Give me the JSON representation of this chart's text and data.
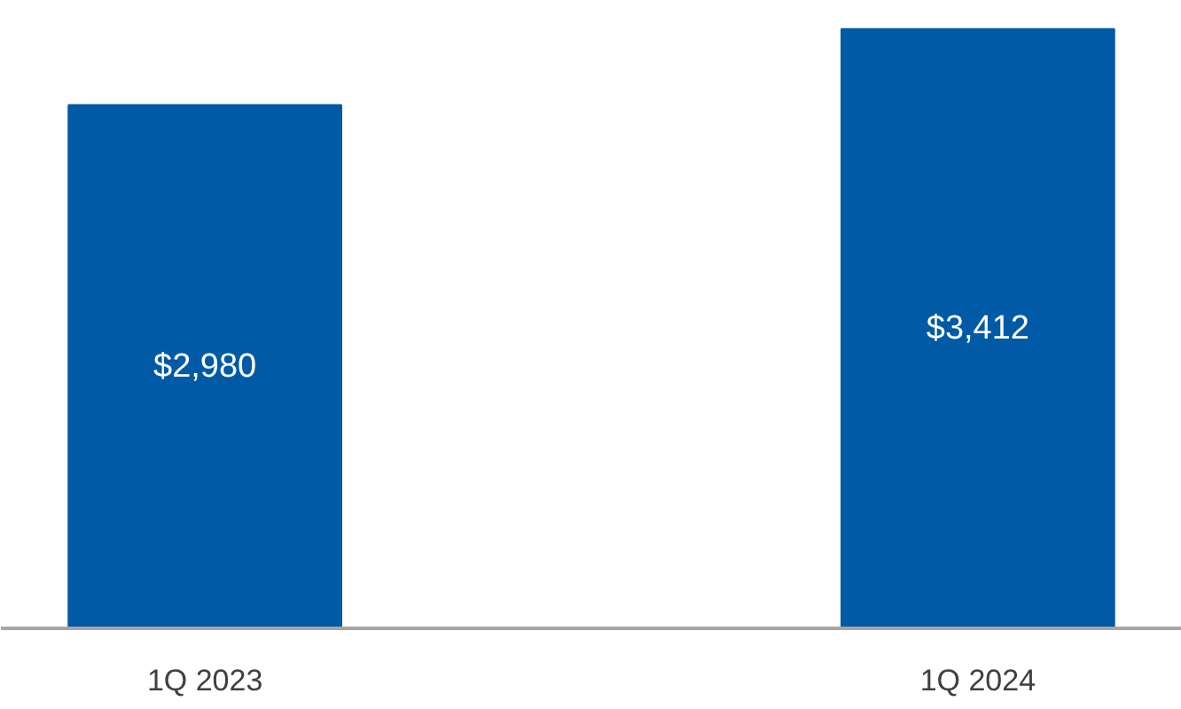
{
  "chart_data": {
    "type": "bar",
    "categories": [
      "1Q 2023",
      "1Q 2024"
    ],
    "values": [
      2980,
      3412
    ],
    "value_labels": [
      "$2,980",
      "$3,412"
    ],
    "color": "#005aa5"
  }
}
